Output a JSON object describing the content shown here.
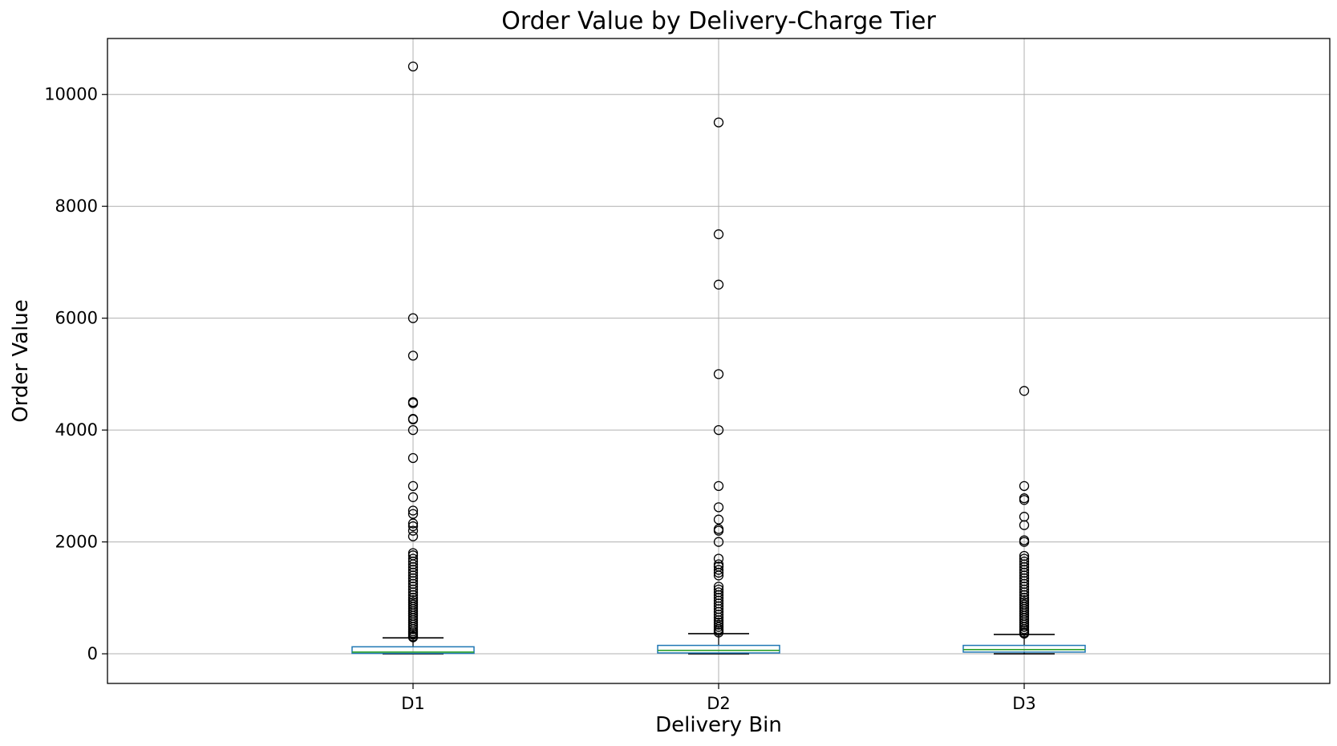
{
  "chart_data": {
    "type": "box",
    "title": "Order Value by Delivery-Charge Tier",
    "xlabel": "Delivery Bin",
    "ylabel": "Order Value",
    "ylim": [
      -530,
      11000
    ],
    "yticks": [
      0,
      2000,
      4000,
      6000,
      8000,
      10000
    ],
    "grid": true,
    "colors": {
      "box": "#1f77b4",
      "median": "#2ca02c",
      "whisker": "#000000",
      "grid": "#b0b0b0"
    },
    "series": [
      {
        "category": "D1",
        "q1": 8,
        "median": 30,
        "q3": 125,
        "whisker_low": 0,
        "whisker_high": 285,
        "outliers": [
          10500,
          6000,
          5330,
          4500,
          4480,
          4200,
          4190,
          4000,
          3500,
          3000,
          2800,
          2560,
          2500,
          2330,
          2280,
          2200,
          2100,
          1800,
          1760,
          1700,
          1650,
          1600,
          1550,
          1500,
          1450,
          1400,
          1350,
          1300,
          1250,
          1200,
          1150,
          1100,
          1050,
          1000,
          960,
          920,
          880,
          840,
          800,
          760,
          720,
          680,
          640,
          600,
          560,
          520,
          480,
          440,
          400,
          370,
          340,
          310,
          295
        ]
      },
      {
        "category": "D2",
        "q1": 15,
        "median": 60,
        "q3": 150,
        "whisker_low": 0,
        "whisker_high": 360,
        "outliers": [
          9500,
          7500,
          6600,
          5000,
          4000,
          3000,
          2620,
          2400,
          2230,
          2200,
          2000,
          1700,
          1600,
          1560,
          1500,
          1450,
          1400,
          1200,
          1150,
          1100,
          1050,
          1000,
          950,
          900,
          850,
          800,
          750,
          700,
          650,
          600,
          560,
          520,
          480,
          440,
          410,
          380
        ]
      },
      {
        "category": "D3",
        "q1": 30,
        "median": 75,
        "q3": 150,
        "whisker_low": 0,
        "whisker_high": 345,
        "outliers": [
          4700,
          3000,
          2780,
          2750,
          2450,
          2300,
          2030,
          2000,
          1750,
          1700,
          1650,
          1600,
          1550,
          1500,
          1450,
          1400,
          1350,
          1300,
          1250,
          1200,
          1150,
          1100,
          1050,
          1000,
          960,
          920,
          880,
          840,
          800,
          760,
          720,
          680,
          640,
          600,
          560,
          520,
          480,
          440,
          410,
          380,
          360
        ]
      }
    ]
  }
}
